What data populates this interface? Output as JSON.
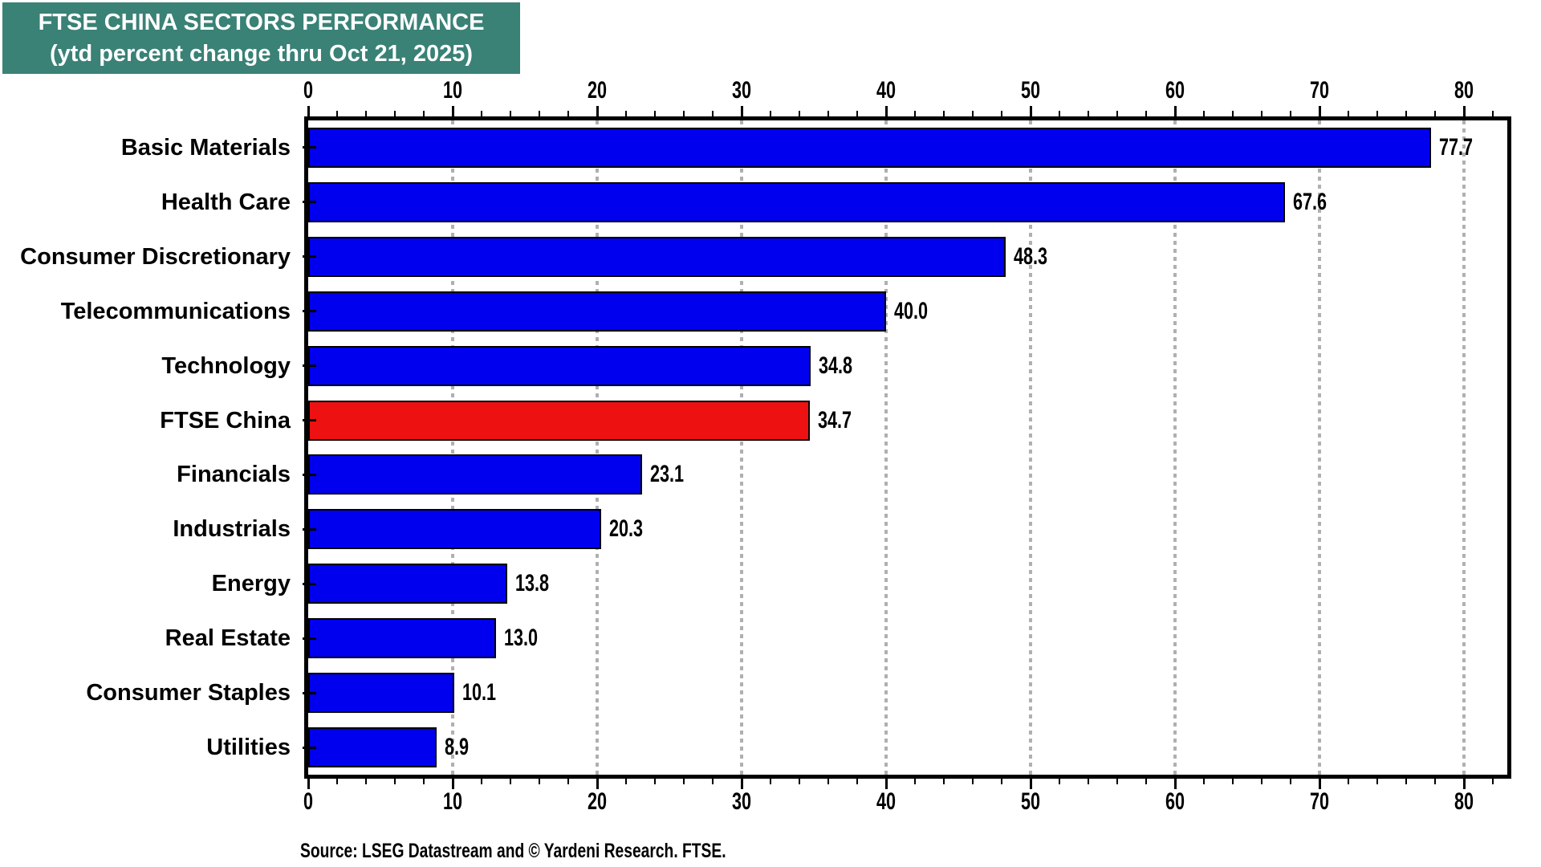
{
  "title": {
    "line1": "FTSE CHINA SECTORS PERFORMANCE",
    "line2": "(ytd percent change thru Oct 21, 2025)"
  },
  "source": "Source: LSEG Datastream and © Yardeni Research. FTSE.",
  "chart_data": {
    "type": "bar",
    "orientation": "horizontal",
    "title": "FTSE CHINA SECTORS PERFORMANCE (ytd percent change thru Oct 21, 2025)",
    "categories": [
      "Basic Materials",
      "Health Care",
      "Consumer Discretionary",
      "Telecommunications",
      "Technology",
      "FTSE China",
      "Financials",
      "Industrials",
      "Energy",
      "Real Estate",
      "Consumer Staples",
      "Utilities"
    ],
    "values": [
      77.7,
      67.6,
      48.3,
      40.0,
      34.8,
      34.7,
      23.1,
      20.3,
      13.8,
      13.0,
      10.1,
      8.9
    ],
    "value_labels": [
      "77.7",
      "67.6",
      "48.3",
      "40.0",
      "34.8",
      "34.7",
      "23.1",
      "20.3",
      "13.8",
      "13.0",
      "10.1",
      "8.9"
    ],
    "highlight_category": "FTSE China",
    "highlight_index": 5,
    "xlabel": "",
    "ylabel": "",
    "xlim": [
      0,
      83
    ],
    "x_major_ticks": [
      0,
      10,
      20,
      30,
      40,
      50,
      60,
      70,
      80
    ],
    "x_minor_tick_step": 2,
    "grid": "vertical dotted gridlines at major ticks",
    "legend": "none",
    "axis_ticks_on": "top and bottom",
    "colors": {
      "bar": "#0000EE",
      "highlight_bar": "#EE1111",
      "bar_border": "#000000",
      "grid": "#B0B0B0",
      "title_bg": "#3A8176",
      "title_text": "#FFFFFF",
      "text": "#000000"
    }
  }
}
